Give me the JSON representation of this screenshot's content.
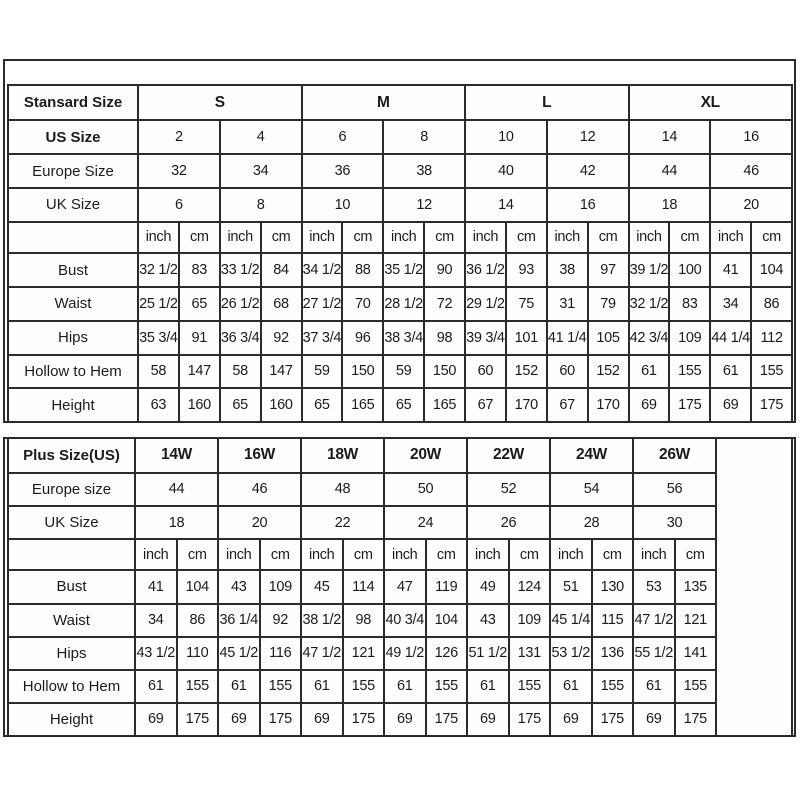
{
  "page": {
    "background_color": "#ffffff",
    "border_color": "#2b2b2b",
    "text_color": "#1b1b1b"
  },
  "standard_table": {
    "corner_label": "Stansard Size",
    "label_col_width": 130,
    "subcolumns": 16,
    "value_span": 2,
    "header_groups": [
      {
        "label": "S",
        "span": 4
      },
      {
        "label": "M",
        "span": 4
      },
      {
        "label": "L",
        "span": 4
      },
      {
        "label": "XL",
        "span": 4
      }
    ],
    "top_rows": [
      {
        "label": "US Size",
        "bold": true,
        "values": [
          "2",
          "4",
          "6",
          "8",
          "10",
          "12",
          "14",
          "16"
        ]
      },
      {
        "label": "Europe Size",
        "bold": false,
        "values": [
          "32",
          "34",
          "36",
          "38",
          "40",
          "42",
          "44",
          "46"
        ]
      },
      {
        "label": "UK Size",
        "bold": false,
        "values": [
          "6",
          "8",
          "10",
          "12",
          "14",
          "16",
          "18",
          "20"
        ]
      }
    ],
    "unit_labels": [
      "inch",
      "cm"
    ],
    "body_rows": [
      {
        "label": "Bust",
        "values": [
          "32 1/2",
          "83",
          "33 1/2",
          "84",
          "34 1/2",
          "88",
          "35 1/2",
          "90",
          "36 1/2",
          "93",
          "38",
          "97",
          "39 1/2",
          "100",
          "41",
          "104"
        ]
      },
      {
        "label": "Waist",
        "values": [
          "25 1/2",
          "65",
          "26 1/2",
          "68",
          "27 1/2",
          "70",
          "28 1/2",
          "72",
          "29 1/2",
          "75",
          "31",
          "79",
          "32 1/2",
          "83",
          "34",
          "86"
        ]
      },
      {
        "label": "Hips",
        "values": [
          "35 3/4",
          "91",
          "36 3/4",
          "92",
          "37 3/4",
          "96",
          "38 3/4",
          "98",
          "39 3/4",
          "101",
          "41 1/4",
          "105",
          "42 3/4",
          "109",
          "44 1/4",
          "112"
        ]
      },
      {
        "label": "Hollow to Hem",
        "values": [
          "58",
          "147",
          "58",
          "147",
          "59",
          "150",
          "59",
          "150",
          "60",
          "152",
          "60",
          "152",
          "61",
          "155",
          "61",
          "155"
        ]
      },
      {
        "label": "Height",
        "values": [
          "63",
          "160",
          "65",
          "160",
          "65",
          "165",
          "65",
          "165",
          "67",
          "170",
          "67",
          "170",
          "69",
          "175",
          "69",
          "175"
        ]
      }
    ]
  },
  "plus_table": {
    "corner_label": "Plus Size(US)",
    "label_col_width": 127,
    "subcolumns": 14,
    "value_span": 2,
    "empty_trailing_column": {
      "width": 76
    },
    "header_groups": [
      {
        "label": "14W",
        "span": 2
      },
      {
        "label": "16W",
        "span": 2
      },
      {
        "label": "18W",
        "span": 2
      },
      {
        "label": "20W",
        "span": 2
      },
      {
        "label": "22W",
        "span": 2
      },
      {
        "label": "24W",
        "span": 2
      },
      {
        "label": "26W",
        "span": 2
      }
    ],
    "top_rows": [
      {
        "label": "Europe size",
        "bold": false,
        "values": [
          "44",
          "46",
          "48",
          "50",
          "52",
          "54",
          "56"
        ]
      },
      {
        "label": "UK Size",
        "bold": false,
        "values": [
          "18",
          "20",
          "22",
          "24",
          "26",
          "28",
          "30"
        ]
      }
    ],
    "unit_labels": [
      "inch",
      "cm"
    ],
    "body_rows": [
      {
        "label": "Bust",
        "values": [
          "41",
          "104",
          "43",
          "109",
          "45",
          "114",
          "47",
          "119",
          "49",
          "124",
          "51",
          "130",
          "53",
          "135"
        ]
      },
      {
        "label": "Waist",
        "values": [
          "34",
          "86",
          "36 1/4",
          "92",
          "38 1/2",
          "98",
          "40 3/4",
          "104",
          "43",
          "109",
          "45 1/4",
          "115",
          "47 1/2",
          "121"
        ]
      },
      {
        "label": "Hips",
        "values": [
          "43 1/2",
          "110",
          "45 1/2",
          "116",
          "47 1/2",
          "121",
          "49 1/2",
          "126",
          "51 1/2",
          "131",
          "53 1/2",
          "136",
          "55 1/2",
          "141"
        ]
      },
      {
        "label": "Hollow to Hem",
        "values": [
          "61",
          "155",
          "61",
          "155",
          "61",
          "155",
          "61",
          "155",
          "61",
          "155",
          "61",
          "155",
          "61",
          "155"
        ]
      },
      {
        "label": "Height",
        "values": [
          "69",
          "175",
          "69",
          "175",
          "69",
          "175",
          "69",
          "175",
          "69",
          "175",
          "69",
          "175",
          "69",
          "175"
        ]
      }
    ]
  }
}
